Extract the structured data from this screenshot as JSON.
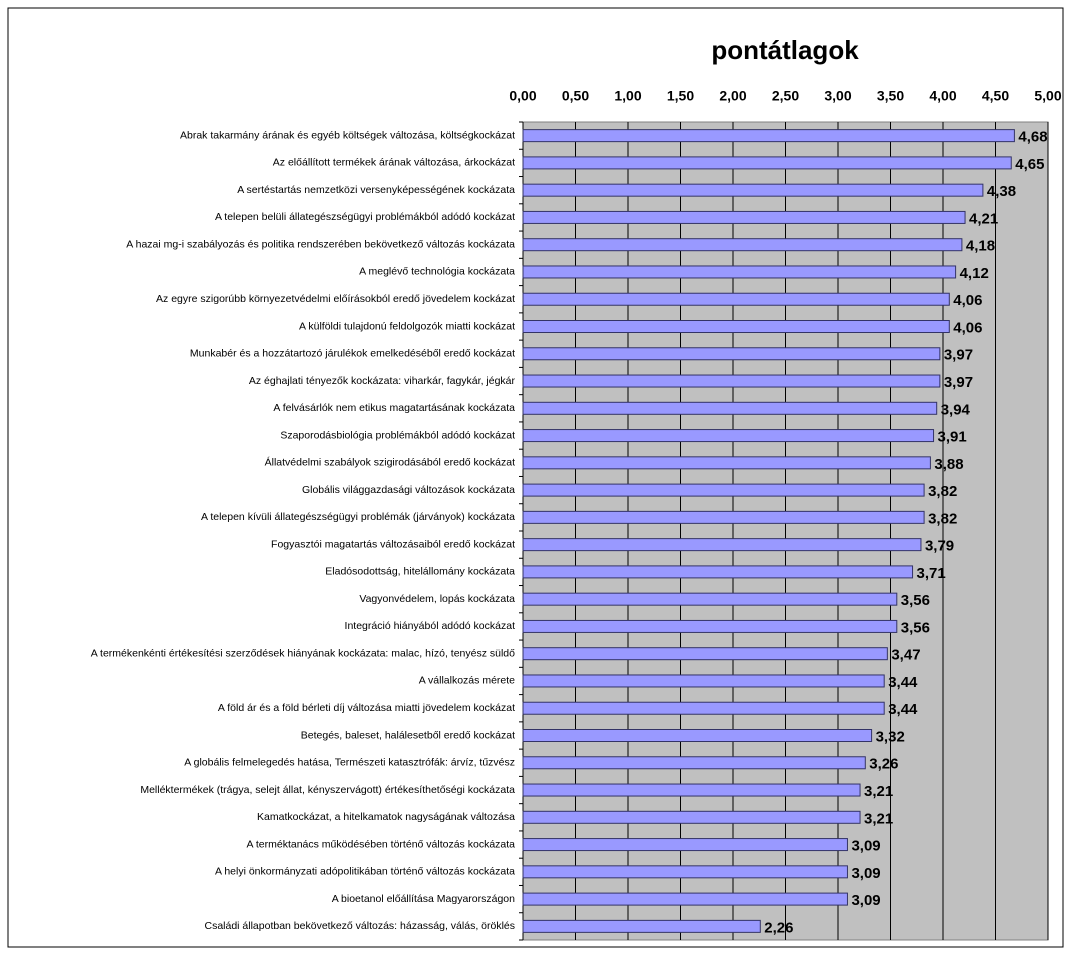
{
  "chart_data": {
    "type": "bar",
    "orientation": "horizontal",
    "title": "pontátlagok",
    "categories": [
      "Abrak takarmány árának és egyéb költségek változása, költségkockázat",
      "Az előállított termékek árának változása, árkockázat",
      "A sertéstartás nemzetközi versenyképességének kockázata",
      "A telepen belüli állategészségügyi problémákból adódó kockázat",
      "A hazai mg-i szabályozás és politika rendszerében bekövetkező változás kockázata",
      "A meglévő technológia kockázata",
      "Az egyre szigorúbb környezetvédelmi előírásokból eredő jövedelem kockázat",
      "A külföldi tulajdonú feldolgozók miatti kockázat",
      "Munkabér és a hozzátartozó járulékok emelkedéséből eredő kockázat",
      "Az éghajlati tényezők kockázata: viharkár, fagykár, jégkár",
      "A felvásárlók nem etikus magatartásának kockázata",
      "Szaporodásbiológia problémákból adódó kockázat",
      "Állatvédelmi szabályok szigirodásából eredő kockázat",
      "Globális világgazdasági változások kockázata",
      "A telepen kívüli állategészségügyi problémák (járványok) kockázata",
      "Fogyasztói magatartás változásaiból eredő kockázat",
      "Eladósodottság, hitelállomány kockázata",
      "Vagyonvédelem, lopás kockázata",
      "Integráció hiányából adódó kockázat",
      "A termékenkénti értékesítési szerződések hiányának kockázata: malac, hízó, tenyész süldő",
      "A vállalkozás mérete",
      "A föld ár és a föld bérleti díj változása miatti jövedelem kockázat",
      "Betegés, baleset, halálesetből eredő kockázat",
      "A globális felmelegedés hatása, Természeti katasztrófák: árvíz, tűzvész",
      "Melléktermékek (trágya, selejt állat, kényszervágott) értékesíthetőségi kockázata",
      "Kamatkockázat, a hitelkamatok nagyságának változása",
      "A terméktanács működésében történő változás kockázata",
      "A helyi önkormányzati adópolitikában történő változás kockázata",
      "A bioetanol előállítása Magyarországon",
      "Családi állapotban bekövetkező változás: házasság, válás, öröklés"
    ],
    "values": [
      4.68,
      4.65,
      4.38,
      4.21,
      4.18,
      4.12,
      4.06,
      4.06,
      3.97,
      3.97,
      3.94,
      3.91,
      3.88,
      3.82,
      3.82,
      3.79,
      3.71,
      3.56,
      3.56,
      3.47,
      3.44,
      3.44,
      3.32,
      3.26,
      3.21,
      3.21,
      3.09,
      3.09,
      3.09,
      2.26
    ],
    "value_labels": [
      "4,68",
      "4,65",
      "4,38",
      "4,21",
      "4,18",
      "4,12",
      "4,06",
      "4,06",
      "3,97",
      "3,97",
      "3,94",
      "3,91",
      "3,88",
      "3,82",
      "3,82",
      "3,79",
      "3,71",
      "3,56",
      "3,56",
      "3,47",
      "3,44",
      "3,44",
      "3,32",
      "3,26",
      "3,21",
      "3,21",
      "3,09",
      "3,09",
      "3,09",
      "2,26"
    ],
    "color": "#9999ff",
    "xlim": [
      0,
      5
    ],
    "xticks": [
      {
        "value": 0,
        "label": "0,00"
      },
      {
        "value": 0.5,
        "label": "0,50"
      },
      {
        "value": 1,
        "label": "1,00"
      },
      {
        "value": 1.5,
        "label": "1,50"
      },
      {
        "value": 2,
        "label": "2,00"
      },
      {
        "value": 2.5,
        "label": "2,50"
      },
      {
        "value": 3,
        "label": "3,00"
      },
      {
        "value": 3.5,
        "label": "3,50"
      },
      {
        "value": 4,
        "label": "4,00"
      },
      {
        "value": 4.5,
        "label": "4,50"
      },
      {
        "value": 5,
        "label": "5,00"
      }
    ],
    "grid": true
  }
}
